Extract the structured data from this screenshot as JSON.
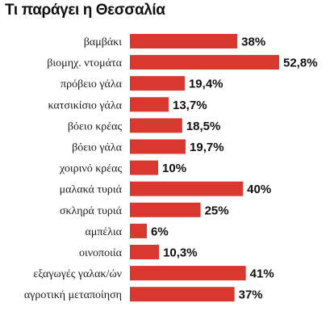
{
  "chart_data": {
    "type": "bar",
    "orientation": "horizontal",
    "title": "Τι παράγει η Θεσσαλία",
    "categories": [
      "βαμβάκι",
      "βιομηχ. ντομάτα",
      "πρόβειο γάλα",
      "κατσικίσιο γάλα",
      "βόειο κρέας",
      "βόειο γάλα",
      "χοιρινό κρέας",
      "μαλακά τυριά",
      "σκληρά τυριά",
      "αμπέλια",
      "οινοποιία",
      "εξαγωγές γαλακ/ών",
      "αγροτική μεταποίηση"
    ],
    "values": [
      38,
      52.8,
      19.4,
      13.7,
      18.5,
      19.7,
      10,
      40,
      25,
      6,
      10.3,
      41,
      37
    ],
    "value_labels": [
      "38%",
      "52,8%",
      "19,4%",
      "13,7%",
      "18,5%",
      "19,7%",
      "10%",
      "40%",
      "25%",
      "6%",
      "10,3%",
      "41%",
      "37%"
    ],
    "xlim": [
      0,
      52.8
    ],
    "grid": false,
    "legend": false,
    "bar_color": "#d8382e"
  }
}
